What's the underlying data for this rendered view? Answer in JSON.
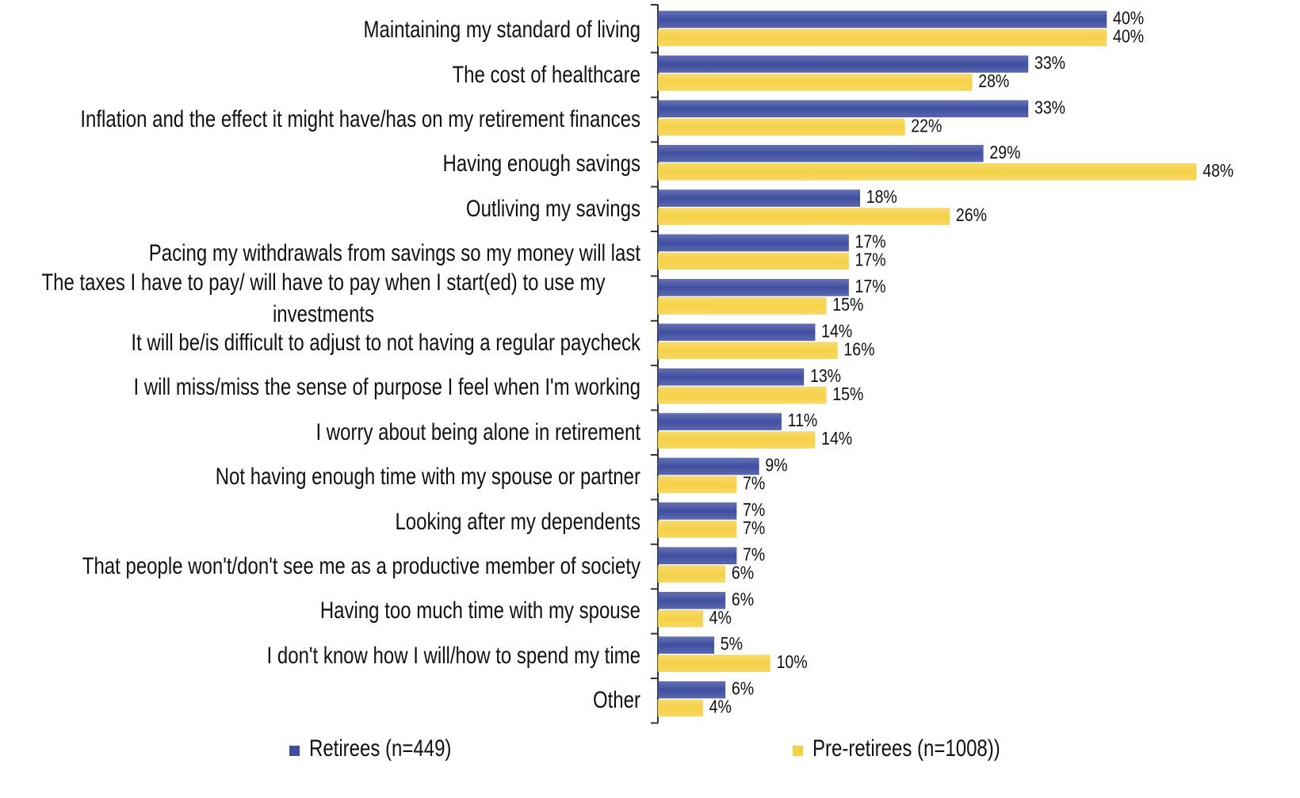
{
  "chart_data": {
    "type": "bar",
    "orientation": "horizontal",
    "categories": [
      "Maintaining my standard of living",
      "The cost of healthcare",
      "Inflation and the effect it might have/has on my retirement finances",
      "Having enough savings",
      "Outliving my savings",
      "Pacing my withdrawals from savings so my money will last",
      "The taxes I have to pay/ will have to pay when I start(ed) to use my investments",
      "It will be/is difficult to adjust to not having a regular paycheck",
      "I will miss/miss the sense of purpose I feel when I'm working",
      "I worry about being alone in retirement",
      "Not having enough time with my spouse or partner",
      "Looking after my dependents",
      "That people won't/don't see me as a productive member of society",
      "Having too much time with my spouse",
      "I don't know how I will/how to spend my time",
      "Other"
    ],
    "series": [
      {
        "name": "Retirees (n=449)",
        "color": "#3f4ea0",
        "values": [
          40,
          33,
          33,
          29,
          18,
          17,
          17,
          14,
          13,
          11,
          9,
          7,
          7,
          6,
          5,
          6
        ],
        "value_labels": [
          "40%",
          "33%",
          "33%",
          "29%",
          "18%",
          "17%",
          "17%",
          "14%",
          "13%",
          "11%",
          "9%",
          "7%",
          "7%",
          "6%",
          "5%",
          "6%"
        ]
      },
      {
        "name": "Pre-retirees (n=1008))",
        "color": "#f5d147",
        "values": [
          40,
          28,
          22,
          48,
          26,
          17,
          15,
          16,
          15,
          14,
          7,
          7,
          6,
          4,
          10,
          4
        ],
        "value_labels": [
          "40%",
          "28%",
          "22%",
          "48%",
          "26%",
          "17%",
          "15%",
          "16%",
          "15%",
          "14%",
          "7%",
          "7%",
          "6%",
          "4%",
          "10%",
          "4%"
        ]
      }
    ],
    "legend": "bottom"
  }
}
